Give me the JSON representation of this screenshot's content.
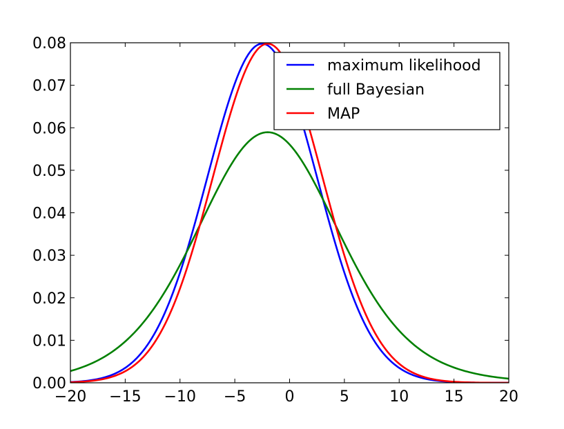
{
  "chart_data": {
    "type": "line",
    "title": "",
    "xlabel": "",
    "ylabel": "",
    "xlim": [
      -20,
      20
    ],
    "ylim": [
      0,
      0.08
    ],
    "x_ticks": [
      -20,
      -15,
      -10,
      -5,
      0,
      5,
      10,
      15,
      20
    ],
    "x_tick_labels": [
      "−20",
      "−15",
      "−10",
      "−5",
      "0",
      "5",
      "10",
      "15",
      "20"
    ],
    "y_ticks": [
      0,
      0.01,
      0.02,
      0.03,
      0.04,
      0.05,
      0.06,
      0.07,
      0.08
    ],
    "y_tick_labels": [
      "0.00",
      "0.01",
      "0.02",
      "0.03",
      "0.04",
      "0.05",
      "0.06",
      "0.07",
      "0.08"
    ],
    "grid": false,
    "legend_position": "top-right",
    "series": [
      {
        "name": "maximum likelihood",
        "color": "#0000ff",
        "kind": "gaussian",
        "mean": -2.5,
        "std": 5.0,
        "x_range": [
          -20,
          20
        ],
        "samples": 201
      },
      {
        "name": "full Bayesian",
        "color": "#008000",
        "kind": "student-t",
        "location": -2.0,
        "scale": 6.6,
        "dof": 10,
        "x_range": [
          -20,
          20
        ],
        "samples": 201
      },
      {
        "name": "MAP",
        "color": "#ff0000",
        "kind": "gaussian",
        "mean": -2.0,
        "std": 5.0,
        "x_range": [
          -20,
          20
        ],
        "samples": 201
      }
    ]
  }
}
